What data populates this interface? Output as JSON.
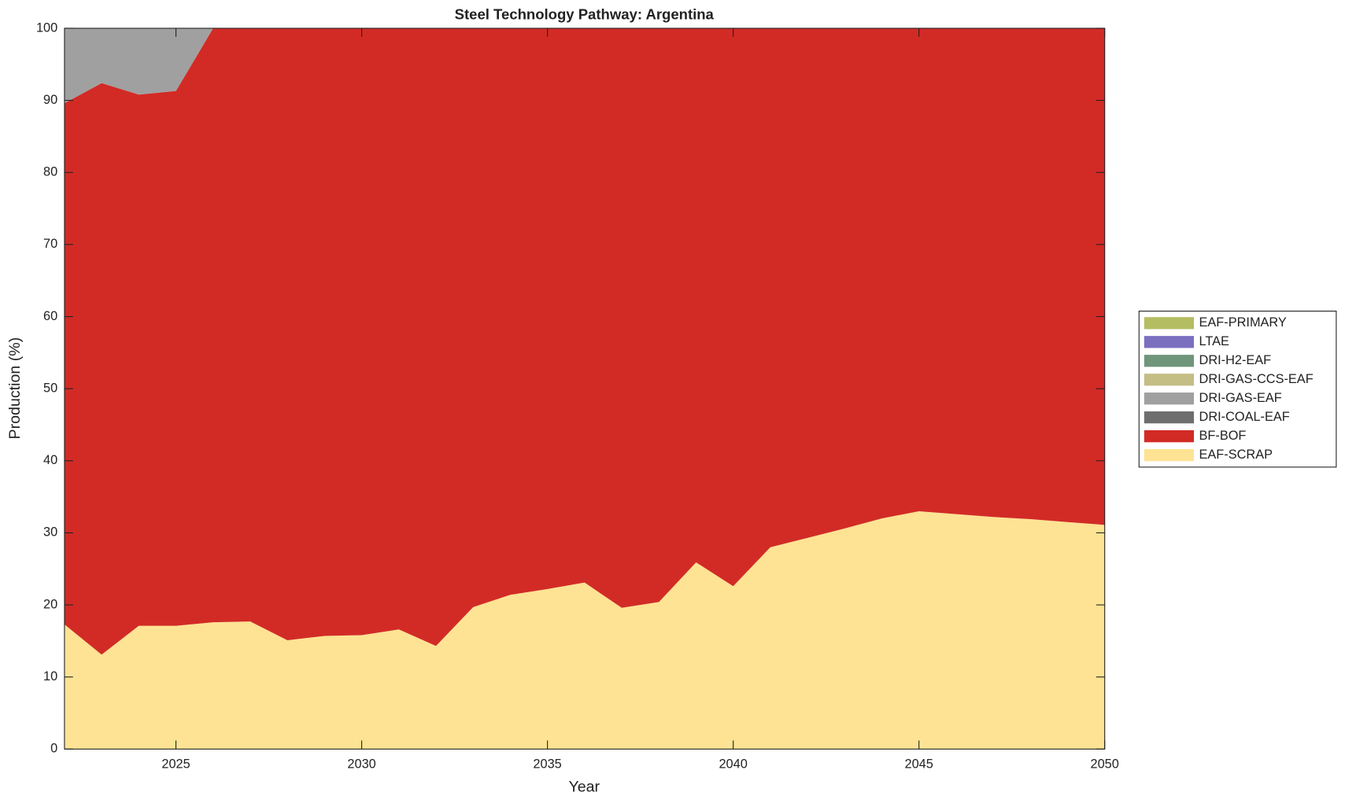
{
  "chart_data": {
    "type": "stacked_area",
    "title": "Steel Technology Pathway: Argentina",
    "x_label": "Year",
    "y_label": "Production (%)",
    "x": [
      2022,
      2023,
      2024,
      2025,
      2026,
      2027,
      2028,
      2029,
      2030,
      2031,
      2032,
      2033,
      2034,
      2035,
      2036,
      2037,
      2038,
      2039,
      2040,
      2041,
      2042,
      2043,
      2044,
      2045,
      2046,
      2047,
      2048,
      2049,
      2050
    ],
    "xlim": [
      2022,
      2050
    ],
    "xticks": [
      2025,
      2030,
      2035,
      2040,
      2045,
      2050
    ],
    "ylim": [
      0,
      100
    ],
    "yticks": [
      0,
      10,
      20,
      30,
      40,
      50,
      60,
      70,
      80,
      90,
      100
    ],
    "legend_position": "right",
    "series": [
      {
        "name": "EAF-SCRAP",
        "color": "#fde393",
        "values": [
          17.3,
          13.1,
          17.1,
          17.1,
          17.6,
          17.7,
          15.1,
          15.7,
          15.8,
          16.6,
          14.3,
          19.7,
          21.4,
          22.2,
          23.1,
          19.6,
          20.4,
          25.9,
          22.6,
          28.0,
          29.3,
          30.6,
          32.0,
          33.0,
          32.6,
          32.2,
          31.9,
          31.5,
          31.1
        ]
      },
      {
        "name": "BF-BOF",
        "color": "#d22b26",
        "values": [
          72.3,
          79.3,
          73.7,
          74.2,
          82.4,
          82.3,
          84.9,
          84.3,
          84.2,
          83.4,
          85.7,
          80.3,
          78.6,
          77.8,
          76.9,
          80.4,
          79.6,
          74.1,
          77.4,
          72.0,
          70.7,
          69.4,
          68.0,
          67.0,
          67.4,
          67.8,
          68.1,
          68.5,
          68.9
        ]
      },
      {
        "name": "DRI-COAL-EAF",
        "color": "#6e6e6e",
        "values": [
          0,
          0,
          0,
          0,
          0,
          0,
          0,
          0,
          0,
          0,
          0,
          0,
          0,
          0,
          0,
          0,
          0,
          0,
          0,
          0,
          0,
          0,
          0,
          0,
          0,
          0,
          0,
          0,
          0
        ]
      },
      {
        "name": "DRI-GAS-EAF",
        "color": "#a0a0a0",
        "values": [
          10.4,
          7.6,
          9.2,
          8.7,
          0,
          0,
          0,
          0,
          0,
          0,
          0,
          0,
          0,
          0,
          0,
          0,
          0,
          0,
          0,
          0,
          0,
          0,
          0,
          0,
          0,
          0,
          0,
          0,
          0
        ]
      },
      {
        "name": "DRI-GAS-CCS-EAF",
        "color": "#c4bd84",
        "values": [
          0,
          0,
          0,
          0,
          0,
          0,
          0,
          0,
          0,
          0,
          0,
          0,
          0,
          0,
          0,
          0,
          0,
          0,
          0,
          0,
          0,
          0,
          0,
          0,
          0,
          0,
          0,
          0,
          0
        ]
      },
      {
        "name": "DRI-H2-EAF",
        "color": "#6f957a",
        "values": [
          0,
          0,
          0,
          0,
          0,
          0,
          0,
          0,
          0,
          0,
          0,
          0,
          0,
          0,
          0,
          0,
          0,
          0,
          0,
          0,
          0,
          0,
          0,
          0,
          0,
          0,
          0,
          0,
          0
        ]
      },
      {
        "name": "LTAE",
        "color": "#7b6fc0",
        "values": [
          0,
          0,
          0,
          0,
          0,
          0,
          0,
          0,
          0,
          0,
          0,
          0,
          0,
          0,
          0,
          0,
          0,
          0,
          0,
          0,
          0,
          0,
          0,
          0,
          0,
          0,
          0,
          0,
          0
        ]
      },
      {
        "name": "EAF-PRIMARY",
        "color": "#b5bd62",
        "values": [
          0,
          0,
          0,
          0,
          0,
          0,
          0,
          0,
          0,
          0,
          0,
          0,
          0,
          0,
          0,
          0,
          0,
          0,
          0,
          0,
          0,
          0,
          0,
          0,
          0,
          0,
          0,
          0,
          0
        ]
      }
    ]
  }
}
